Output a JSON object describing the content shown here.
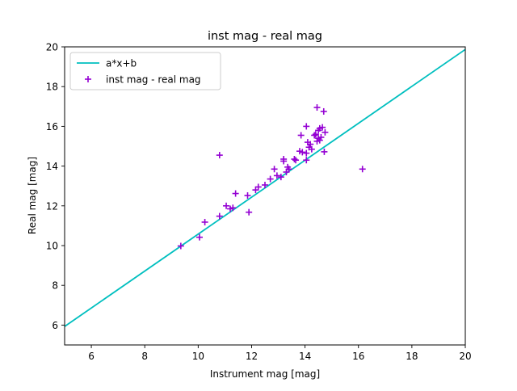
{
  "chart_data": {
    "type": "scatter",
    "title": "inst mag - real mag",
    "xlabel": "Instrument mag [mag]",
    "ylabel": "Real mag [mag]",
    "xlim": [
      5,
      20
    ],
    "ylim": [
      5,
      20
    ],
    "xticks": [
      6,
      8,
      10,
      12,
      14,
      16,
      18,
      20
    ],
    "yticks": [
      6,
      8,
      10,
      12,
      14,
      16,
      18,
      20
    ],
    "grid": false,
    "legend_position": "top-left",
    "fit_line": {
      "name": "a*x+b",
      "color": "#00bfbf",
      "x": [
        5,
        20
      ],
      "y": [
        5.93,
        19.87
      ]
    },
    "series": [
      {
        "name": "inst mag - real mag",
        "color": "#9400d3",
        "marker": "plus",
        "points": [
          [
            9.35,
            9.98
          ],
          [
            10.05,
            10.42
          ],
          [
            10.25,
            11.18
          ],
          [
            10.8,
            11.48
          ],
          [
            10.8,
            14.55
          ],
          [
            11.05,
            12.0
          ],
          [
            11.2,
            11.85
          ],
          [
            11.3,
            11.9
          ],
          [
            11.4,
            12.62
          ],
          [
            11.85,
            12.52
          ],
          [
            11.9,
            11.68
          ],
          [
            12.15,
            12.8
          ],
          [
            12.25,
            12.95
          ],
          [
            12.5,
            13.05
          ],
          [
            12.7,
            13.35
          ],
          [
            12.85,
            13.85
          ],
          [
            12.95,
            13.52
          ],
          [
            13.1,
            13.45
          ],
          [
            13.2,
            14.35
          ],
          [
            13.2,
            14.25
          ],
          [
            13.3,
            13.7
          ],
          [
            13.35,
            13.95
          ],
          [
            13.4,
            13.85
          ],
          [
            13.6,
            14.35
          ],
          [
            13.65,
            14.3
          ],
          [
            13.8,
            14.75
          ],
          [
            13.85,
            15.55
          ],
          [
            13.9,
            14.7
          ],
          [
            14.05,
            14.3
          ],
          [
            14.05,
            16.0
          ],
          [
            14.05,
            14.65
          ],
          [
            14.1,
            15.2
          ],
          [
            14.15,
            14.95
          ],
          [
            14.2,
            15.1
          ],
          [
            14.25,
            14.85
          ],
          [
            14.35,
            15.55
          ],
          [
            14.4,
            15.6
          ],
          [
            14.45,
            15.25
          ],
          [
            14.45,
            16.95
          ],
          [
            14.5,
            15.8
          ],
          [
            14.5,
            15.4
          ],
          [
            14.55,
            15.3
          ],
          [
            14.55,
            15.9
          ],
          [
            14.6,
            15.45
          ],
          [
            14.65,
            15.95
          ],
          [
            14.7,
            16.75
          ],
          [
            14.72,
            14.72
          ],
          [
            14.75,
            15.7
          ],
          [
            16.15,
            13.85
          ]
        ]
      }
    ]
  }
}
